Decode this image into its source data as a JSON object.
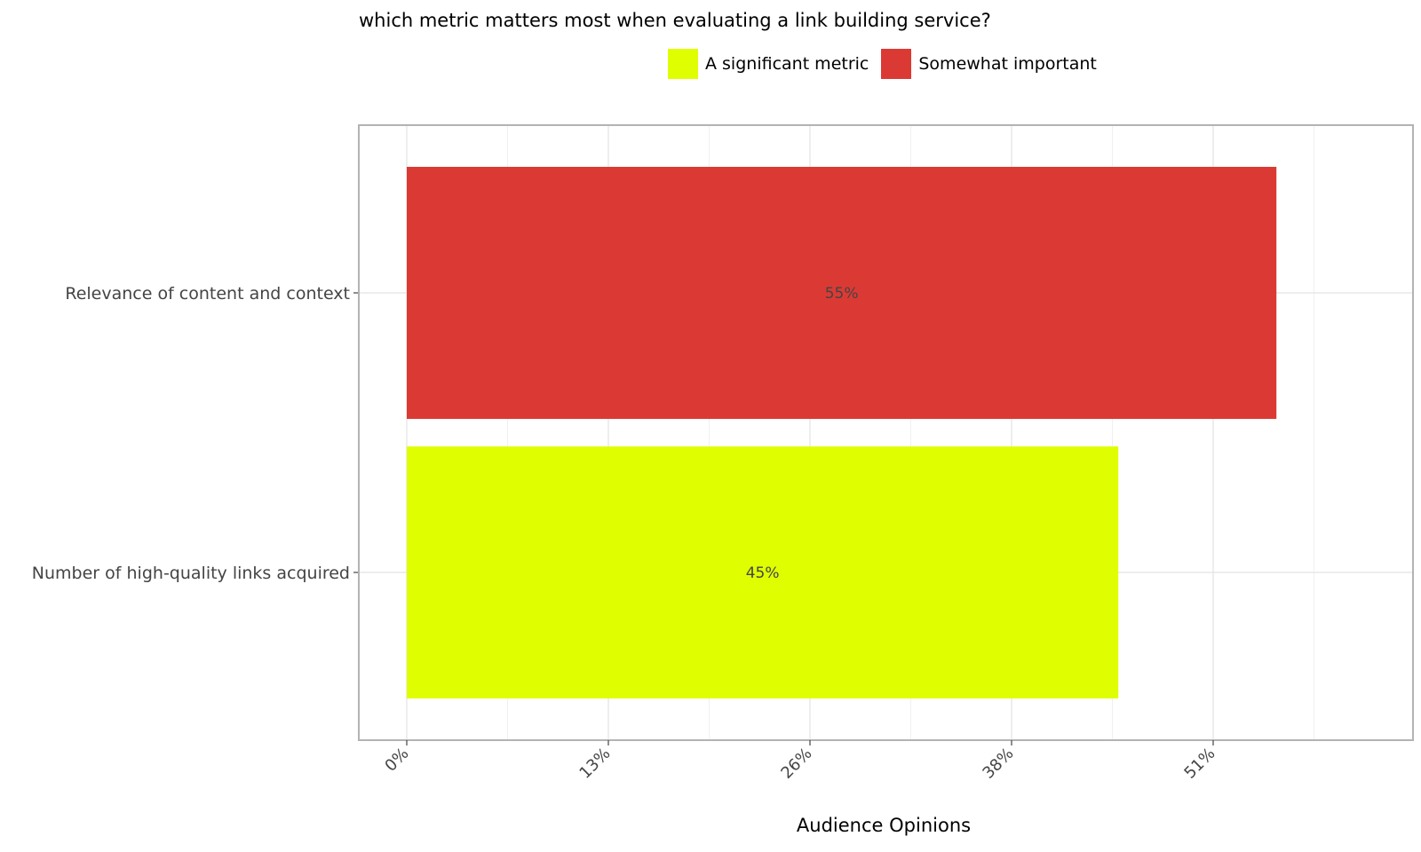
{
  "chart_data": {
    "type": "bar",
    "orientation": "horizontal",
    "title": "which metric matters most when evaluating a link building service?",
    "xlabel": "Audience Opinions",
    "ylabel": "",
    "categories": [
      "Relevance of content and context",
      "Number of high-quality links acquired"
    ],
    "values": [
      55,
      45
    ],
    "value_labels": [
      "55%",
      "45%"
    ],
    "bar_series": [
      "Somewhat important",
      "A significant metric"
    ],
    "series": [
      {
        "name": "A significant metric",
        "color": "#dfff00"
      },
      {
        "name": "Somewhat important",
        "color": "#db3a34"
      }
    ],
    "xticks": [
      "0%",
      "13%",
      "26%",
      "38%",
      "51%"
    ],
    "xtick_values": [
      0,
      12.75,
      25.5,
      38.25,
      51
    ],
    "xlim": [
      0,
      63.2
    ],
    "grid": true,
    "legend_position": "top"
  }
}
